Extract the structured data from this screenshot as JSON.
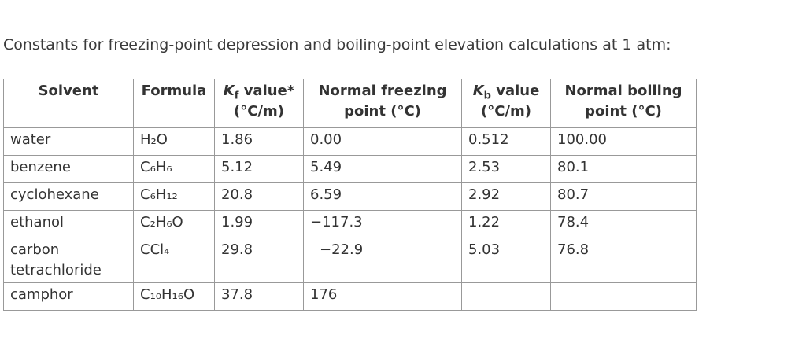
{
  "caption": "Constants for freezing-point depression and boiling-point elevation calculations at 1 atm:",
  "table": {
    "headers": [
      {
        "text": "Solvent"
      },
      {
        "text": "Formula"
      },
      {
        "symbol": "K",
        "subscript": "f",
        "text": "value*",
        "unit": "(°C/m)"
      },
      {
        "text": "Normal freezing point (°C)"
      },
      {
        "symbol": "K",
        "subscript": "b",
        "text": "value",
        "unit": "(°C/m)"
      },
      {
        "text": "Normal boiling point (°C)"
      }
    ],
    "rows": [
      [
        "water",
        "H₂O",
        "1.86",
        "0.00",
        "0.512",
        "100.00"
      ],
      [
        "benzene",
        "C₆H₆",
        "5.12",
        "5.49",
        "2.53",
        "80.1"
      ],
      [
        "cyclohexane",
        "C₆H₁₂",
        "20.8",
        "6.59",
        "2.92",
        "80.7"
      ],
      [
        "ethanol",
        "C₂H₆O",
        "1.99",
        "−117.3",
        "1.22",
        "78.4"
      ],
      [
        "carbon tetrachloride",
        "CCl₄",
        "29.8",
        "−22.9",
        "5.03",
        "76.8"
      ],
      [
        "camphor",
        "C₁₀H₁₆O",
        "37.8",
        "176",
        null,
        null
      ]
    ]
  }
}
